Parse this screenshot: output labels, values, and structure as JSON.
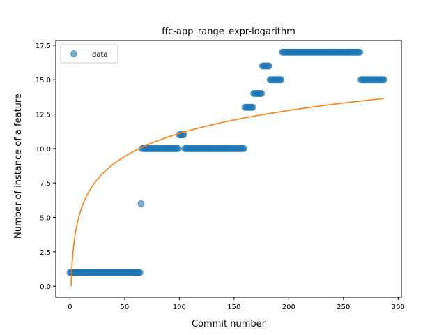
{
  "chart_data": {
    "type": "scatter",
    "title": "ffc-app_range_expr-logarithm",
    "xlabel": "Commit number",
    "ylabel": "Number of instance of a feature",
    "xlim": [
      -13,
      303
    ],
    "ylim": [
      -0.8,
      17.85
    ],
    "xticks": [
      0,
      50,
      100,
      150,
      200,
      250,
      300
    ],
    "xtick_labels": [
      "0",
      "50",
      "100",
      "150",
      "200",
      "250",
      "300"
    ],
    "yticks": [
      0,
      2.5,
      5,
      7.5,
      10,
      12.5,
      15,
      17.5
    ],
    "ytick_labels": [
      "0.0",
      "2.5",
      "5.0",
      "7.5",
      "10.0",
      "12.5",
      "15.0",
      "17.5"
    ],
    "legend": {
      "position": "top-left",
      "entries": [
        "data"
      ]
    },
    "grid": false,
    "colors": {
      "data": "#1f77b4",
      "fit": "#ff7f0e"
    },
    "series": [
      {
        "name": "data",
        "kind": "scatter",
        "segments": [
          {
            "x_start": 0,
            "x_end": 64,
            "y": 1
          },
          {
            "x_start": 65,
            "x_end": 65,
            "y": 6
          },
          {
            "x_start": 66,
            "x_end": 99,
            "y": 10
          },
          {
            "x_start": 100,
            "x_end": 104,
            "y": 11
          },
          {
            "x_start": 105,
            "x_end": 159,
            "y": 10
          },
          {
            "x_start": 160,
            "x_end": 167,
            "y": 13
          },
          {
            "x_start": 168,
            "x_end": 175,
            "y": 14
          },
          {
            "x_start": 176,
            "x_end": 182,
            "y": 16
          },
          {
            "x_start": 183,
            "x_end": 193,
            "y": 15
          },
          {
            "x_start": 194,
            "x_end": 265,
            "y": 17
          },
          {
            "x_start": 266,
            "x_end": 287,
            "y": 15
          }
        ]
      },
      {
        "kind": "line",
        "equation": {
          "form": "y = a*ln(x+1)",
          "a": 2.41
        },
        "x_range": [
          1,
          287
        ]
      }
    ]
  }
}
